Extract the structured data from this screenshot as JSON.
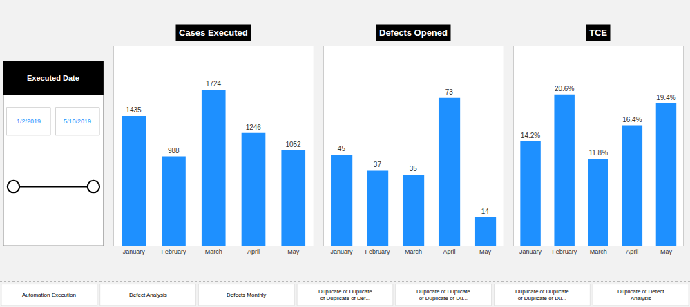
{
  "chart_data": [
    {
      "type": "bar",
      "title": "Cases Executed",
      "categories": [
        "January",
        "February",
        "March",
        "April",
        "May"
      ],
      "values": [
        1435,
        988,
        1724,
        1246,
        1052
      ],
      "color": "#1E90FF",
      "ylim": [
        0,
        2206.72
      ],
      "data_labels": true,
      "tick_labels": "x",
      "grid": false,
      "annotations": [
        "Executed Date",
        "1/2/2019",
        "5/10/2019",
        "Automation Execution",
        "Defect Analysis",
        "Defects Monthly",
        "Duplicate of Duplicate of Duplicate of Def...",
        "Duplicate of Duplicate of Duplicate of Du...",
        "Duplicate of Duplicate of Duplicate of Du...",
        "Duplicate of Defect Analysis"
      ]
    },
    {
      "type": "bar",
      "title": "Defects Opened",
      "categories": [
        "January",
        "February",
        "March",
        "April",
        "May"
      ],
      "values": [
        45,
        37,
        35,
        73,
        14
      ],
      "color": "#1E90FF",
      "ylim": [
        0,
        98.55
      ],
      "data_labels": true,
      "tick_labels": "x",
      "grid": false
    },
    {
      "type": "bar",
      "title": "TCE",
      "categories": [
        "January",
        "February",
        "March",
        "April",
        "May"
      ],
      "values": [
        14.2,
        20.6,
        11.8,
        16.4,
        19.4
      ],
      "value_labels": [
        "14.2%",
        "20.6%",
        "11.8%",
        "16.4%",
        "19.4%"
      ],
      "color": "#1E90FF",
      "ylim": [
        0,
        27.192
      ],
      "data_labels": true,
      "tick_labels": "x",
      "grid": false
    }
  ]
}
